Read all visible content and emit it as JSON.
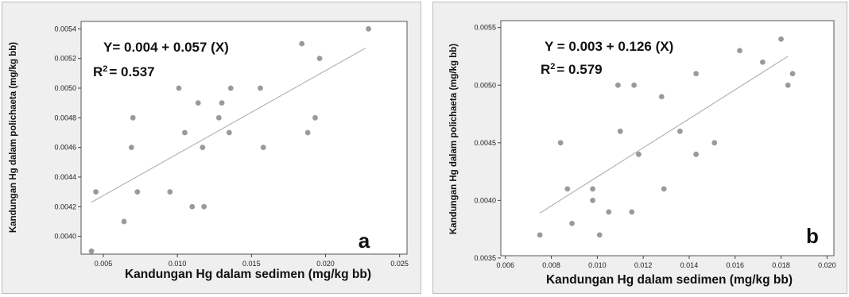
{
  "chart_data": [
    {
      "type": "scatter",
      "panel_label": "a",
      "equation": "Y= 0.004 + 0.057 (X)",
      "r2_label": "R",
      "r2_sup": "2",
      "r2_value": "= 0.537",
      "xlabel": "Kandungan Hg dalam sedimen (mg/kg bb)",
      "ylabel": "Kandungan Hg dalam polichaeta (mg/kg bb)",
      "xlim": [
        0.0035,
        0.0255
      ],
      "ylim": [
        0.00388,
        0.00545
      ],
      "xticks": [
        0.005,
        0.01,
        0.015,
        0.02,
        0.025
      ],
      "xtick_labels": [
        "0.005",
        "0.010",
        "0.015",
        "0.020",
        "0.025"
      ],
      "yticks": [
        0.004,
        0.0042,
        0.0044,
        0.0046,
        0.0048,
        0.005,
        0.0052,
        0.0054
      ],
      "ytick_labels": [
        "0.0040",
        "0.0042",
        "0.0044",
        "0.0046",
        "0.0048",
        "0.0050",
        "0.0052",
        "0.0054"
      ],
      "points": [
        [
          0.0042,
          0.0039
        ],
        [
          0.0045,
          0.0043
        ],
        [
          0.0064,
          0.0041
        ],
        [
          0.0069,
          0.0046
        ],
        [
          0.007,
          0.0048
        ],
        [
          0.0073,
          0.0043
        ],
        [
          0.0095,
          0.0043
        ],
        [
          0.0101,
          0.005
        ],
        [
          0.0105,
          0.0047
        ],
        [
          0.011,
          0.0042
        ],
        [
          0.0114,
          0.0049
        ],
        [
          0.0117,
          0.0046
        ],
        [
          0.0118,
          0.0042
        ],
        [
          0.0128,
          0.0048
        ],
        [
          0.013,
          0.0049
        ],
        [
          0.0135,
          0.0047
        ],
        [
          0.0136,
          0.005
        ],
        [
          0.0156,
          0.005
        ],
        [
          0.0158,
          0.0046
        ],
        [
          0.0184,
          0.0053
        ],
        [
          0.0188,
          0.0047
        ],
        [
          0.0193,
          0.0048
        ],
        [
          0.0196,
          0.0052
        ],
        [
          0.0229,
          0.0054
        ]
      ],
      "fit_line": [
        [
          0.0042,
          0.00423
        ],
        [
          0.0227,
          0.00527
        ]
      ],
      "colors": {
        "point": "#9a9a9a",
        "line": "#a8a8a8",
        "plot_bg": "#ffffff",
        "panel_bg": "#efefef"
      }
    },
    {
      "type": "scatter",
      "panel_label": "b",
      "equation": "Y = 0.003 + 0.126 (X)",
      "r2_label": "R",
      "r2_sup": "2",
      "r2_value": "= 0.579",
      "xlabel": "Kandungan Hg dalam sedimen (mg/kg bb)",
      "ylabel": "Kandungan Hg dalam polichaeta (mg/kg bb)",
      "xlim": [
        0.0058,
        0.0203
      ],
      "ylim": [
        0.00352,
        0.00556
      ],
      "xticks": [
        0.006,
        0.008,
        0.01,
        0.012,
        0.014,
        0.016,
        0.018,
        0.02
      ],
      "xtick_labels": [
        "0.006",
        "0.008",
        "0.010",
        "0.012",
        "0.014",
        "0.016",
        "0.018",
        "0.020"
      ],
      "yticks": [
        0.0035,
        0.004,
        0.0045,
        0.005,
        0.0055
      ],
      "ytick_labels": [
        "0.0035",
        "0.0040",
        "0.0045",
        "0.0050",
        "0.0055"
      ],
      "points": [
        [
          0.0075,
          0.0037
        ],
        [
          0.0084,
          0.0045
        ],
        [
          0.0087,
          0.0041
        ],
        [
          0.0089,
          0.0038
        ],
        [
          0.0098,
          0.0041
        ],
        [
          0.0098,
          0.004
        ],
        [
          0.0101,
          0.0037
        ],
        [
          0.0105,
          0.0039
        ],
        [
          0.0109,
          0.005
        ],
        [
          0.011,
          0.0046
        ],
        [
          0.0115,
          0.0039
        ],
        [
          0.0116,
          0.005
        ],
        [
          0.0118,
          0.0044
        ],
        [
          0.0128,
          0.0049
        ],
        [
          0.0129,
          0.0041
        ],
        [
          0.0136,
          0.0046
        ],
        [
          0.0143,
          0.0044
        ],
        [
          0.0143,
          0.0051
        ],
        [
          0.0151,
          0.0045
        ],
        [
          0.0162,
          0.0053
        ],
        [
          0.0172,
          0.0052
        ],
        [
          0.018,
          0.0054
        ],
        [
          0.0183,
          0.005
        ],
        [
          0.0185,
          0.0051
        ]
      ],
      "fit_line": [
        [
          0.0075,
          0.00389
        ],
        [
          0.0183,
          0.00525
        ]
      ],
      "colors": {
        "point": "#9a9a9a",
        "line": "#a8a8a8",
        "plot_bg": "#ffffff",
        "panel_bg": "#efefef"
      }
    }
  ]
}
